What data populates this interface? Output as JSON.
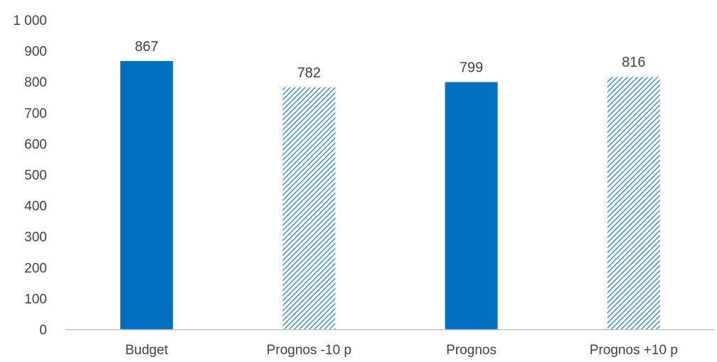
{
  "chart_data": {
    "type": "bar",
    "title": "",
    "xlabel": "",
    "ylabel": "",
    "categories": [
      "Budget",
      "Prognos -10 p",
      "Prognos",
      "Prognos +10 p"
    ],
    "values": [
      867,
      782,
      799,
      816
    ],
    "value_labels": [
      "867",
      "782",
      "799",
      "816"
    ],
    "bar_styles": [
      "solid",
      "hatched",
      "solid",
      "hatched"
    ],
    "ylim": [
      0,
      1000
    ],
    "yticks": [
      0,
      100,
      200,
      300,
      400,
      500,
      600,
      700,
      800,
      900,
      1000
    ],
    "ytick_labels": [
      "0",
      "100",
      "200",
      "300",
      "400",
      "500",
      "600",
      "700",
      "800",
      "900",
      "1 000"
    ],
    "grid": false,
    "legend": "none",
    "colors": {
      "bar": "#0070c0",
      "axis_line": "#bfbfbf",
      "text": "#404040"
    }
  }
}
